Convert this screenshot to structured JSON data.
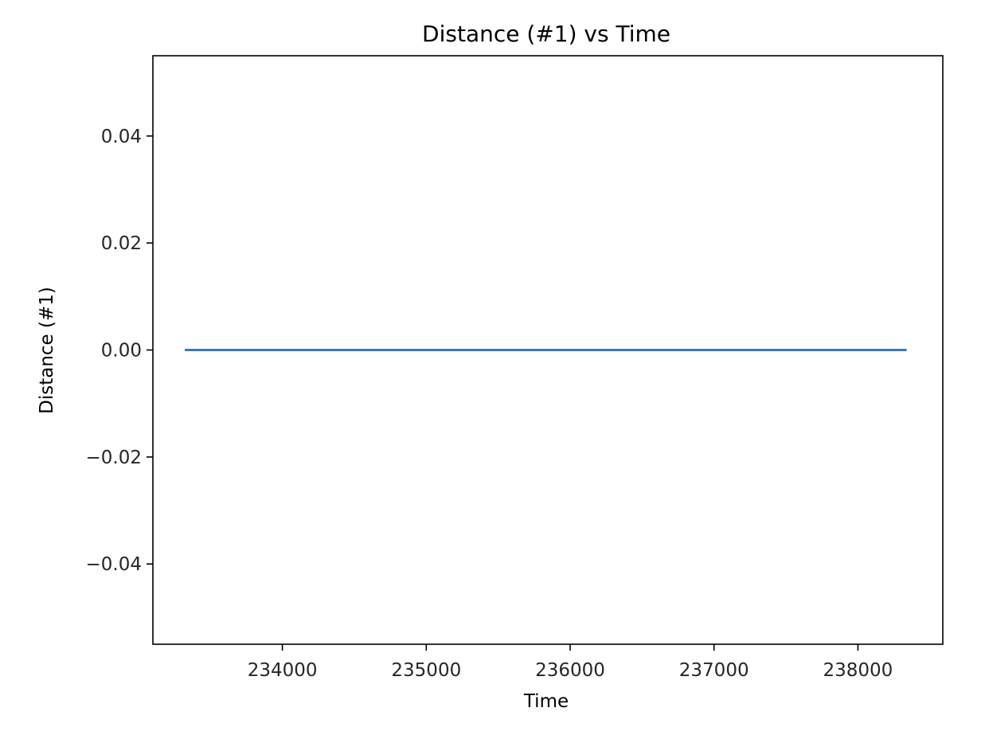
{
  "chart_data": {
    "type": "line",
    "title": "Distance (#1) vs Time",
    "xlabel": "Time",
    "ylabel": "Distance (#1)",
    "xlim": [
      233100,
      238590
    ],
    "ylim": [
      -0.055,
      0.055
    ],
    "xticks": [
      234000,
      235000,
      236000,
      237000,
      238000
    ],
    "xtick_labels": [
      "234000",
      "235000",
      "236000",
      "237000",
      "238000"
    ],
    "yticks": [
      0.04,
      0.02,
      0.0,
      -0.02,
      -0.04
    ],
    "ytick_labels": [
      "0.04",
      "0.02",
      "0.00",
      "−0.02",
      "−0.04"
    ],
    "grid": false,
    "series": [
      {
        "color": "#3a78b4",
        "x": [
          233330,
          238330
        ],
        "y": [
          0.0,
          0.0
        ]
      }
    ]
  }
}
